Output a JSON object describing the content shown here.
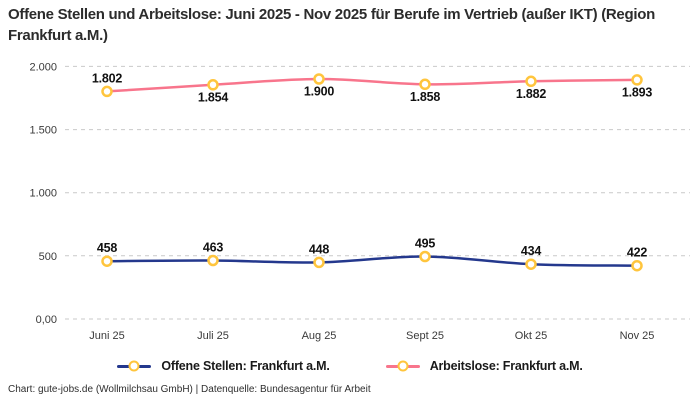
{
  "title": {
    "text": "Offene Stellen und Arbeitslose: Juni 2025 - Nov 2025 für Berufe im Vertrieb (außer IKT) (Region Frankfurt a.M.)"
  },
  "footer": {
    "text": "Chart: gute-jobs.de (Wollmilchsau GmbH) | Datenquelle: Bundesagentur für Arbeit"
  },
  "colors": {
    "open_positions_line": "#24388D",
    "unemployed_line": "#F8758C",
    "marker_ring": "#FFC53D",
    "marker_fill": "#FFFFFF",
    "gridline": "#C9C9C9",
    "axis_text": "#3a3a3a",
    "data_label_text": "#111111"
  },
  "chart_data": {
    "type": "line",
    "title": "Offene Stellen und Arbeitslose: Juni 2025 - Nov 2025 für Berufe im Vertrieb (außer IKT) (Region Frankfurt a.M.)",
    "categories": [
      "Juni 25",
      "Juli 25",
      "Aug 25",
      "Sept 25",
      "Okt 25",
      "Nov 25"
    ],
    "series": [
      {
        "name": "Offene Stellen: Frankfurt a.M.",
        "color": "#24388D",
        "values": [
          458,
          463,
          448,
          495,
          434,
          422
        ],
        "labels": [
          "458",
          "463",
          "448",
          "495",
          "434",
          "422"
        ],
        "label_positions": [
          "above",
          "above",
          "above",
          "above",
          "above",
          "above"
        ]
      },
      {
        "name": "Arbeitslose: Frankfurt a.M.",
        "color": "#F8758C",
        "values": [
          1802,
          1854,
          1900,
          1858,
          1882,
          1893
        ],
        "labels": [
          "1.802",
          "1.854",
          "1.900",
          "1.858",
          "1.882",
          "1.893"
        ],
        "label_positions": [
          "above",
          "below",
          "below",
          "below",
          "below",
          "below"
        ]
      }
    ],
    "xlabel": "",
    "ylabel": "",
    "ylim": [
      0,
      2000
    ],
    "yticks": {
      "values": [
        0,
        500,
        1000,
        1500,
        2000
      ],
      "labels": [
        "0,00",
        "500",
        "1.000",
        "1.500",
        "2.000"
      ]
    },
    "grid": "horizontal dashed",
    "legend_position": "bottom",
    "marker": {
      "shape": "circle",
      "ring_color": "#FFC53D",
      "fill": "#FFFFFF"
    }
  }
}
